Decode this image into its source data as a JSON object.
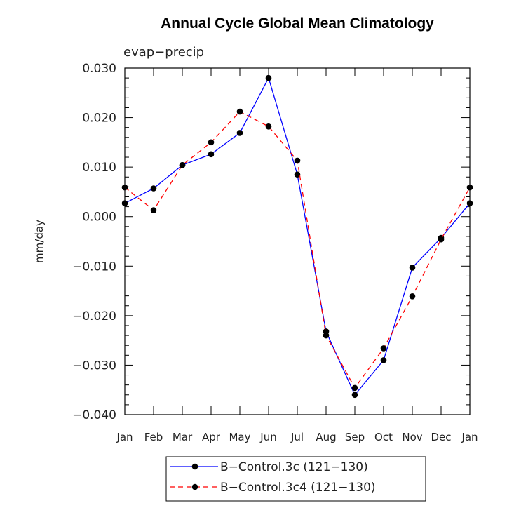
{
  "chart_data": {
    "type": "line",
    "title": "Annual Cycle Global Mean Climatology",
    "subtitle": "evap−precip",
    "xlabel": "",
    "ylabel": "mm/day",
    "categories": [
      "Jan",
      "Feb",
      "Mar",
      "Apr",
      "May",
      "Jun",
      "Jul",
      "Aug",
      "Sep",
      "Oct",
      "Nov",
      "Dec",
      "Jan"
    ],
    "ylim": [
      -0.04,
      0.03
    ],
    "yticks": [
      "0.030",
      "0.020",
      "0.010",
      "0.000",
      "−0.010",
      "−0.020",
      "−0.030",
      "−0.040"
    ],
    "ytick_values": [
      0.03,
      0.02,
      0.01,
      0.0,
      -0.01,
      -0.02,
      -0.03,
      -0.04
    ],
    "grid": false,
    "legend_position": "bottom",
    "series": [
      {
        "name": "B−Control.3c (121−130)",
        "color": "#0000ff",
        "style": "solid",
        "values": [
          0.0027,
          0.0057,
          0.0104,
          0.0126,
          0.0169,
          0.028,
          0.0085,
          -0.0232,
          -0.036,
          -0.029,
          -0.0103,
          -0.0043,
          0.0027
        ]
      },
      {
        "name": "B−Control.3c4 (121−130)",
        "color": "#ff0000",
        "style": "dashed",
        "values": [
          0.0059,
          0.0013,
          0.0104,
          0.015,
          0.0212,
          0.0182,
          0.0113,
          -0.024,
          -0.0346,
          -0.0266,
          -0.0161,
          -0.0046,
          0.0059
        ]
      }
    ]
  }
}
